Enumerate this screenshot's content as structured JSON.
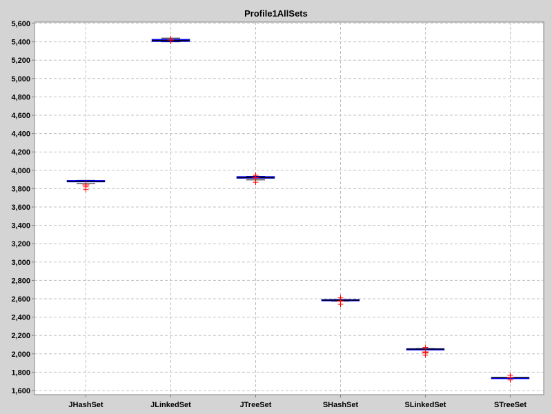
{
  "chart_data": {
    "type": "boxplot",
    "title": "Profile1AllSets",
    "xlabel": "",
    "ylabel": "",
    "ylim": [
      1600,
      5600
    ],
    "yticks": [
      1600,
      1800,
      2000,
      2200,
      2400,
      2600,
      2800,
      3000,
      3200,
      3400,
      3600,
      3800,
      4000,
      4200,
      4400,
      4600,
      4800,
      5000,
      5200,
      5400,
      5600
    ],
    "ytick_labels": [
      "1,600",
      "1,800",
      "2,000",
      "2,200",
      "2,400",
      "2,600",
      "2,800",
      "3,000",
      "3,200",
      "3,400",
      "3,600",
      "3,800",
      "4,000",
      "4,200",
      "4,400",
      "4,600",
      "4,800",
      "5,000",
      "5,200",
      "5,400",
      "5,600"
    ],
    "grid": true,
    "categories": [
      "JHashSet",
      "JLinkedSet",
      "JTreeSet",
      "SHashSet",
      "SLinkedSet",
      "STreeSet"
    ],
    "boxes": [
      {
        "q1": 3875,
        "median": 3880,
        "q3": 3887,
        "mean": 3840,
        "whisker_low": 3855,
        "whisker_high": 3890,
        "outliers": [
          3820,
          3790
        ]
      },
      {
        "q1": 5405,
        "median": 5415,
        "q3": 5425,
        "mean": 5420,
        "whisker_low": 5400,
        "whisker_high": 5440,
        "outliers": []
      },
      {
        "q1": 3915,
        "median": 3920,
        "q3": 3930,
        "mean": 3920,
        "whisker_low": 3895,
        "whisker_high": 3935,
        "outliers": [
          3870,
          3945
        ]
      },
      {
        "q1": 2580,
        "median": 2585,
        "q3": 2590,
        "mean": 2575,
        "whisker_low": 2575,
        "whisker_high": 2592,
        "outliers": [
          2540,
          2610
        ]
      },
      {
        "q1": 2048,
        "median": 2052,
        "q3": 2055,
        "mean": 2020,
        "whisker_low": 2045,
        "whisker_high": 2058,
        "outliers": [
          2010,
          1985,
          2070
        ]
      },
      {
        "q1": 1738,
        "median": 1740,
        "q3": 1742,
        "mean": 1740,
        "whisker_low": 1737,
        "whisker_high": 1743,
        "outliers": [
          1715,
          1765
        ]
      }
    ],
    "colors": {
      "box_border": "#0000ff",
      "median_line": "#000000",
      "mean_marker": "#ff0000",
      "outlier_marker": "#ff0000",
      "box_fill": "#ff0000",
      "grid": "#c0c0c0",
      "plot_bg": "#ffffff"
    }
  }
}
